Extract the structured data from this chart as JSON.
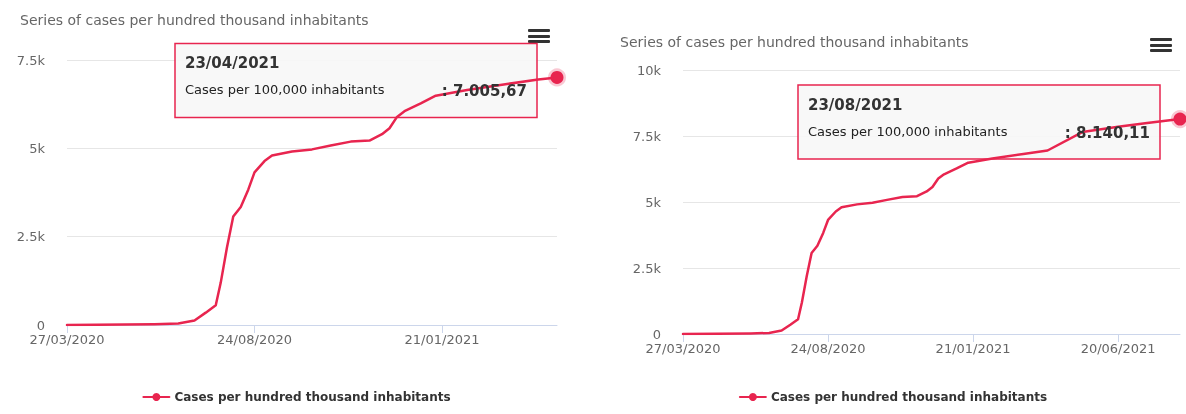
{
  "chart_data": [
    {
      "type": "line",
      "title": "Series of cases per hundred thousand inhabitants",
      "x": [
        "2020-03-27",
        "2020-06-05",
        "2020-06-24",
        "2020-07-07",
        "2020-07-16",
        "2020-07-24",
        "2020-07-28",
        "2020-08-02",
        "2020-08-07",
        "2020-08-13",
        "2020-08-19",
        "2020-08-24",
        "2020-09-01",
        "2020-09-07",
        "2020-09-23",
        "2020-10-09",
        "2020-10-24",
        "2020-11-09",
        "2020-11-24",
        "2020-12-04",
        "2020-12-10",
        "2020-12-16",
        "2020-12-22",
        "2021-01-04",
        "2021-01-16",
        "2021-02-10",
        "2021-03-14",
        "2021-04-08",
        "2021-04-23"
      ],
      "series": [
        {
          "name": "Cases per hundred thousand inhabitants",
          "color": "#e8254f",
          "values": [
            0,
            20,
            40,
            130,
            350,
            560,
            1200,
            2200,
            3070,
            3340,
            3830,
            4320,
            4640,
            4800,
            4910,
            4970,
            5080,
            5190,
            5220,
            5400,
            5570,
            5890,
            6050,
            6270,
            6490,
            6650,
            6820,
            6950,
            7005.67
          ]
        }
      ],
      "xlim": [
        "2020-03-27",
        "2021-04-23"
      ],
      "xticks": [
        {
          "value": "2020-03-27",
          "label": "27/03/2020"
        },
        {
          "value": "2020-08-24",
          "label": "24/08/2020"
        },
        {
          "value": "2021-01-21",
          "label": "21/01/2021"
        }
      ],
      "ylim": [
        0,
        7500
      ],
      "yticks": [
        0,
        {
          "value": 2500,
          "label": "2.5k"
        },
        {
          "value": 5000,
          "label": "5k"
        },
        {
          "value": 7500,
          "label": "7.5k"
        }
      ],
      "annotations": [
        "23/04/2021",
        "Cases per 100,000 inhabitants",
        ": 7.005,67"
      ],
      "grid": "y",
      "legend": "bottom",
      "marker": "none",
      "line_style": "solid"
    },
    {
      "type": "line",
      "title": "Series of cases per hundred thousand inhabitants",
      "x": [
        "2020-03-27",
        "2020-06-05",
        "2020-06-24",
        "2020-07-07",
        "2020-07-16",
        "2020-07-24",
        "2020-07-28",
        "2020-08-02",
        "2020-08-07",
        "2020-08-13",
        "2020-08-19",
        "2020-08-24",
        "2020-09-01",
        "2020-09-07",
        "2020-09-23",
        "2020-10-09",
        "2020-10-24",
        "2020-11-09",
        "2020-11-24",
        "2020-12-04",
        "2020-12-10",
        "2020-12-16",
        "2020-12-22",
        "2021-01-04",
        "2021-01-16",
        "2021-02-10",
        "2021-03-14",
        "2021-04-08",
        "2021-05-14",
        "2021-06-20",
        "2021-07-20",
        "2021-08-23"
      ],
      "series": [
        {
          "name": "Cases per hundred thousand inhabitants",
          "color": "#e8254f",
          "values": [
            0,
            20,
            40,
            130,
            350,
            560,
            1200,
            2200,
            3070,
            3340,
            3830,
            4320,
            4640,
            4800,
            4910,
            4970,
            5080,
            5190,
            5220,
            5400,
            5570,
            5890,
            6050,
            6270,
            6490,
            6650,
            6820,
            6950,
            7650,
            7850,
            7990,
            8140.11
          ]
        }
      ],
      "xlim": [
        "2020-03-27",
        "2021-08-23"
      ],
      "xticks": [
        {
          "value": "2020-03-27",
          "label": "27/03/2020"
        },
        {
          "value": "2020-08-24",
          "label": "24/08/2020"
        },
        {
          "value": "2021-01-21",
          "label": "21/01/2021"
        },
        {
          "value": "2021-06-20",
          "label": "20/06/2021"
        }
      ],
      "ylim": [
        0,
        10000
      ],
      "yticks": [
        0,
        {
          "value": 2500,
          "label": "2.5k"
        },
        {
          "value": 5000,
          "label": "5k"
        },
        {
          "value": 7500,
          "label": "7.5k"
        },
        {
          "value": 10000,
          "label": "10k"
        }
      ],
      "annotations": [
        "23/08/2021",
        "Cases per 100,000 inhabitants",
        ": 8.140,11"
      ],
      "grid": "y",
      "legend": "bottom",
      "marker": "none",
      "line_style": "solid"
    }
  ]
}
